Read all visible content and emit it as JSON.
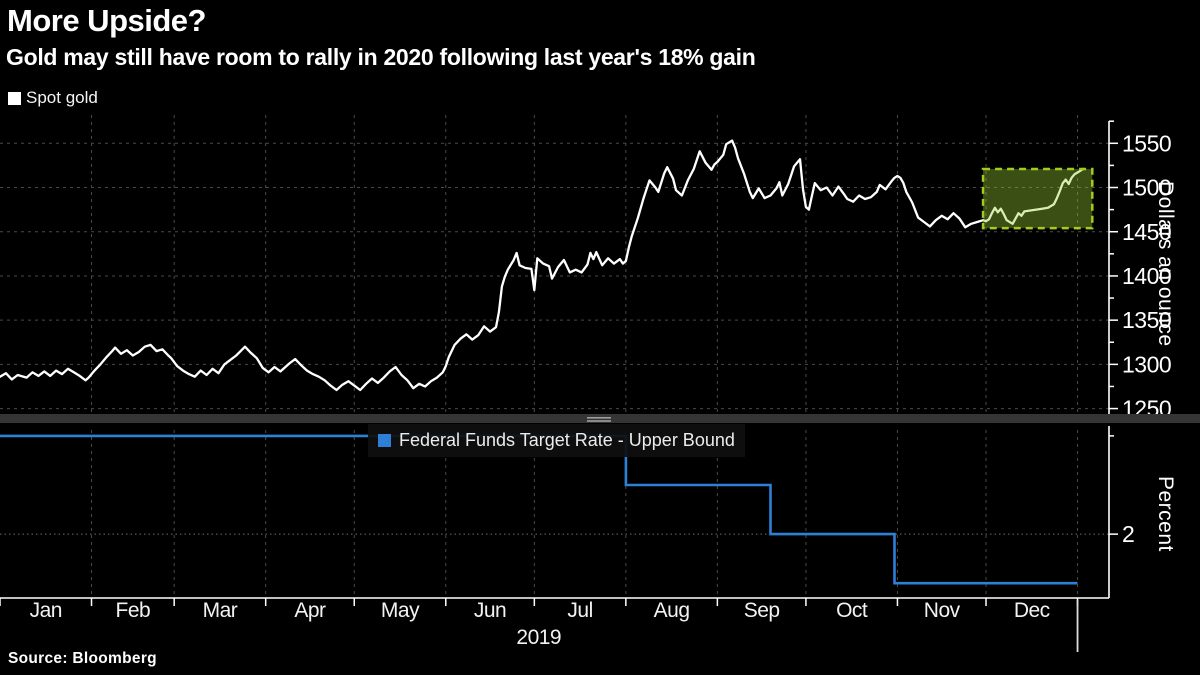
{
  "header": {
    "title": "More Upside?",
    "subtitle": "Gold may still have room to rally in 2020 following last year's 18% gain"
  },
  "source_label": "Source: Bloomberg",
  "colors": {
    "background": "#000000",
    "text": "#ffffff",
    "muted_text": "#f2f2f2",
    "grid": "#4a4a4a",
    "dotted_grid": "#6e6e6e",
    "axis": "#ffffff",
    "divider": "#353535",
    "divider_handle": "#9e9e9e",
    "gold_line": "#ffffff",
    "fed_blue": "#2e7fd6",
    "highlight_fill": "rgba(154,205,50,0.38)",
    "highlight_border": "#9fcc1e"
  },
  "x_axis": {
    "months": [
      "Jan",
      "Feb",
      "Mar",
      "Apr",
      "May",
      "Jun",
      "Jul",
      "Aug",
      "Sep",
      "Oct",
      "Nov",
      "Dec"
    ],
    "month_start_days": [
      0,
      31,
      59,
      90,
      120,
      151,
      181,
      212,
      243,
      273,
      304,
      334,
      365
    ],
    "year_label": "2019"
  },
  "chart_data": [
    {
      "type": "line",
      "name": "spot-gold",
      "legend": {
        "label": "Spot gold",
        "swatch_color": "#ffffff",
        "position": "top-left"
      },
      "ylabel": "Dollars an ounce",
      "yticks": [
        1250,
        1300,
        1350,
        1400,
        1450,
        1500,
        1550
      ],
      "ytick_labels": [
        "1250",
        "1300",
        "1350",
        "1400",
        "1450",
        "1500",
        "1550"
      ],
      "minor_tick_step": 25,
      "ylim": [
        1245,
        1582
      ],
      "xlim_days": [
        0,
        376
      ],
      "grid": true,
      "line_color": "#ffffff",
      "highlight_box": {
        "meaning": "December 2019 rally highlighted",
        "start_day": 333,
        "end_day": 370,
        "low": 1454,
        "high": 1521,
        "fill": "rgba(154,205,50,0.38)",
        "border_color": "#9fcc1e"
      },
      "series": [
        {
          "name": "Spot gold",
          "color": "#ffffff",
          "x_unit": "day_of_year_2019",
          "points": [
            [
              0,
              1286
            ],
            [
              2,
              1290
            ],
            [
              4,
              1283
            ],
            [
              6,
              1288
            ],
            [
              9,
              1285
            ],
            [
              11,
              1291
            ],
            [
              13,
              1287
            ],
            [
              15,
              1292
            ],
            [
              17,
              1287
            ],
            [
              19,
              1293
            ],
            [
              21,
              1289
            ],
            [
              23,
              1295
            ],
            [
              25,
              1291
            ],
            [
              27,
              1287
            ],
            [
              29,
              1282
            ],
            [
              30,
              1285
            ],
            [
              32,
              1293
            ],
            [
              34,
              1300
            ],
            [
              36,
              1308
            ],
            [
              38,
              1315
            ],
            [
              39,
              1319
            ],
            [
              41,
              1312
            ],
            [
              43,
              1316
            ],
            [
              45,
              1310
            ],
            [
              47,
              1314
            ],
            [
              49,
              1320
            ],
            [
              51,
              1322
            ],
            [
              53,
              1315
            ],
            [
              55,
              1317
            ],
            [
              57,
              1310
            ],
            [
              58,
              1307
            ],
            [
              60,
              1298
            ],
            [
              62,
              1293
            ],
            [
              64,
              1289
            ],
            [
              66,
              1286
            ],
            [
              68,
              1293
            ],
            [
              70,
              1288
            ],
            [
              72,
              1295
            ],
            [
              74,
              1290
            ],
            [
              76,
              1300
            ],
            [
              78,
              1305
            ],
            [
              80,
              1310
            ],
            [
              83,
              1320
            ],
            [
              85,
              1313
            ],
            [
              87,
              1307
            ],
            [
              89,
              1296
            ],
            [
              91,
              1291
            ],
            [
              93,
              1297
            ],
            [
              95,
              1292
            ],
            [
              98,
              1301
            ],
            [
              100,
              1306
            ],
            [
              102,
              1299
            ],
            [
              104,
              1293
            ],
            [
              106,
              1289
            ],
            [
              108,
              1286
            ],
            [
              110,
              1282
            ],
            [
              112,
              1276
            ],
            [
              114,
              1271
            ],
            [
              116,
              1277
            ],
            [
              118,
              1281
            ],
            [
              120,
              1276
            ],
            [
              122,
              1271
            ],
            [
              124,
              1278
            ],
            [
              126,
              1284
            ],
            [
              128,
              1279
            ],
            [
              130,
              1285
            ],
            [
              132,
              1292
            ],
            [
              134,
              1297
            ],
            [
              136,
              1288
            ],
            [
              138,
              1282
            ],
            [
              140,
              1273
            ],
            [
              142,
              1278
            ],
            [
              144,
              1275
            ],
            [
              146,
              1281
            ],
            [
              148,
              1285
            ],
            [
              150,
              1291
            ],
            [
              151,
              1298
            ],
            [
              152,
              1308
            ],
            [
              154,
              1322
            ],
            [
              156,
              1329
            ],
            [
              158,
              1334
            ],
            [
              160,
              1328
            ],
            [
              162,
              1333
            ],
            [
              164,
              1343
            ],
            [
              166,
              1337
            ],
            [
              168,
              1342
            ],
            [
              169,
              1359
            ],
            [
              170,
              1388
            ],
            [
              171,
              1399
            ],
            [
              172,
              1407
            ],
            [
              174,
              1418
            ],
            [
              175,
              1426
            ],
            [
              176,
              1412
            ],
            [
              178,
              1409
            ],
            [
              180,
              1408
            ],
            [
              181,
              1384
            ],
            [
              182,
              1420
            ],
            [
              184,
              1414
            ],
            [
              186,
              1411
            ],
            [
              187,
              1397
            ],
            [
              189,
              1410
            ],
            [
              191,
              1418
            ],
            [
              193,
              1404
            ],
            [
              195,
              1407
            ],
            [
              197,
              1404
            ],
            [
              199,
              1413
            ],
            [
              200,
              1426
            ],
            [
              201,
              1419
            ],
            [
              202,
              1427
            ],
            [
              204,
              1412
            ],
            [
              206,
              1420
            ],
            [
              208,
              1414
            ],
            [
              210,
              1419
            ],
            [
              211,
              1414
            ],
            [
              212,
              1417
            ],
            [
              213,
              1432
            ],
            [
              214,
              1445
            ],
            [
              216,
              1465
            ],
            [
              218,
              1488
            ],
            [
              219,
              1498
            ],
            [
              220,
              1508
            ],
            [
              222,
              1500
            ],
            [
              223,
              1495
            ],
            [
              225,
              1516
            ],
            [
              226,
              1523
            ],
            [
              228,
              1510
            ],
            [
              229,
              1497
            ],
            [
              231,
              1491
            ],
            [
              233,
              1508
            ],
            [
              235,
              1521
            ],
            [
              237,
              1541
            ],
            [
              239,
              1528
            ],
            [
              241,
              1520
            ],
            [
              242,
              1526
            ],
            [
              243,
              1529
            ],
            [
              245,
              1537
            ],
            [
              246,
              1549
            ],
            [
              248,
              1553
            ],
            [
              249,
              1545
            ],
            [
              250,
              1533
            ],
            [
              252,
              1516
            ],
            [
              254,
              1495
            ],
            [
              255,
              1488
            ],
            [
              257,
              1499
            ],
            [
              259,
              1488
            ],
            [
              261,
              1491
            ],
            [
              263,
              1499
            ],
            [
              264,
              1506
            ],
            [
              265,
              1491
            ],
            [
              267,
              1504
            ],
            [
              269,
              1524
            ],
            [
              271,
              1532
            ],
            [
              272,
              1498
            ],
            [
              273,
              1478
            ],
            [
              274,
              1475
            ],
            [
              275,
              1490
            ],
            [
              276,
              1505
            ],
            [
              278,
              1497
            ],
            [
              280,
              1500
            ],
            [
              282,
              1491
            ],
            [
              284,
              1501
            ],
            [
              286,
              1492
            ],
            [
              287,
              1487
            ],
            [
              289,
              1484
            ],
            [
              291,
              1491
            ],
            [
              293,
              1487
            ],
            [
              295,
              1489
            ],
            [
              297,
              1495
            ],
            [
              298,
              1503
            ],
            [
              300,
              1498
            ],
            [
              302,
              1507
            ],
            [
              303,
              1511
            ],
            [
              304,
              1513
            ],
            [
              305,
              1511
            ],
            [
              306,
              1505
            ],
            [
              307,
              1495
            ],
            [
              309,
              1483
            ],
            [
              311,
              1466
            ],
            [
              313,
              1461
            ],
            [
              315,
              1456
            ],
            [
              317,
              1463
            ],
            [
              319,
              1468
            ],
            [
              321,
              1464
            ],
            [
              323,
              1471
            ],
            [
              325,
              1465
            ],
            [
              327,
              1455
            ],
            [
              329,
              1459
            ],
            [
              331,
              1461
            ],
            [
              333,
              1463
            ],
            [
              334,
              1462
            ],
            [
              335,
              1464
            ],
            [
              336,
              1471
            ],
            [
              337,
              1477
            ],
            [
              338,
              1472
            ],
            [
              339,
              1476
            ],
            [
              340,
              1470
            ],
            [
              341,
              1463
            ],
            [
              343,
              1459
            ],
            [
              345,
              1471
            ],
            [
              346,
              1468
            ],
            [
              347,
              1473
            ],
            [
              349,
              1474
            ],
            [
              351,
              1475
            ],
            [
              353,
              1476
            ],
            [
              355,
              1477
            ],
            [
              357,
              1481
            ],
            [
              358,
              1488
            ],
            [
              359,
              1496
            ],
            [
              360,
              1505
            ],
            [
              361,
              1509
            ],
            [
              362,
              1504
            ],
            [
              363,
              1511
            ],
            [
              364,
              1515
            ],
            [
              365,
              1517
            ],
            [
              366,
              1519
            ],
            [
              367,
              1521
            ]
          ]
        }
      ]
    },
    {
      "type": "step-line",
      "name": "fed-funds-target-rate",
      "legend": {
        "label": "Federal Funds Target Rate - Upper Bound",
        "swatch_color": "#2e7fd6",
        "position": "overlay-top"
      },
      "ylabel": "Percent",
      "yticks": [
        2
      ],
      "ytick_labels": [
        "2"
      ],
      "minor_yticks": [
        2.5
      ],
      "ylim": [
        1.68,
        2.53
      ],
      "grid": true,
      "line_color": "#2e7fd6",
      "series": [
        {
          "name": "Federal Funds Target Rate - Upper Bound",
          "color": "#2e7fd6",
          "x_unit": "day_of_year_2019",
          "points": [
            [
              0,
              2.5
            ],
            [
              212,
              2.5
            ],
            [
              212,
              2.25
            ],
            [
              261,
              2.25
            ],
            [
              261,
              2.0
            ],
            [
              303,
              2.0
            ],
            [
              303,
              1.75
            ],
            [
              365,
              1.75
            ]
          ]
        }
      ]
    }
  ]
}
